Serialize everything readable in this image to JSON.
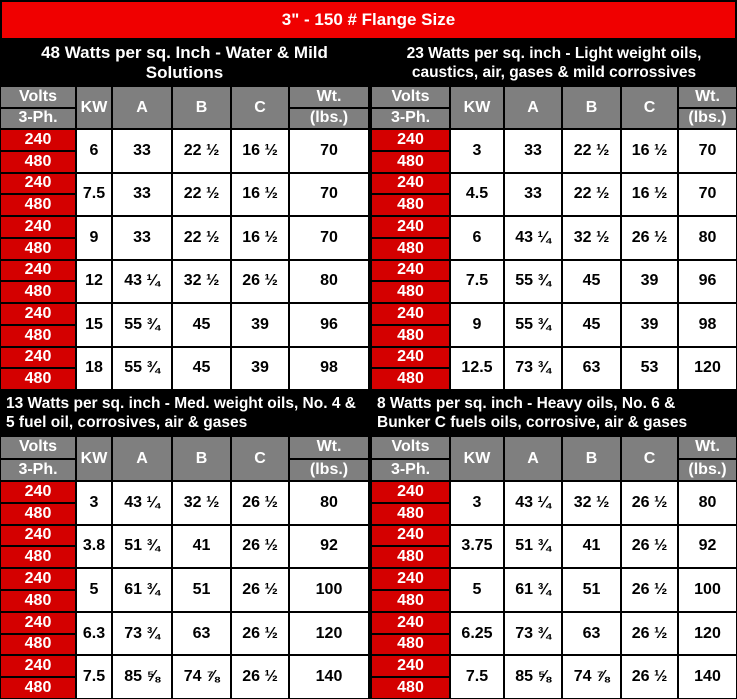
{
  "title": "3\" - 150 # Flange Size",
  "headers": {
    "volts_top": "Volts",
    "volts_bottom": "3-Ph.",
    "kw": "KW",
    "a": "A",
    "b": "B",
    "c": "C",
    "wt_top": "Wt.",
    "wt_bottom": "(lbs.)"
  },
  "sections": [
    {
      "title": "48 Watts per sq. Inch - Water & Mild Solutions",
      "rows": [
        {
          "v1": "240",
          "v2": "480",
          "kw": "6",
          "a": "33",
          "b": "22 ½",
          "c": "16 ½",
          "wt": "70"
        },
        {
          "v1": "240",
          "v2": "480",
          "kw": "7.5",
          "a": "33",
          "b": "22 ½",
          "c": "16 ½",
          "wt": "70"
        },
        {
          "v1": "240",
          "v2": "480",
          "kw": "9",
          "a": "33",
          "b": "22 ½",
          "c": "16 ½",
          "wt": "70"
        },
        {
          "v1": "240",
          "v2": "480",
          "kw": "12",
          "a": "43 ¼",
          "b": "32 ½",
          "c": "26 ½",
          "wt": "80"
        },
        {
          "v1": "240",
          "v2": "480",
          "kw": "15",
          "a": "55 ¾",
          "b": "45",
          "c": "39",
          "wt": "96"
        },
        {
          "v1": "240",
          "v2": "480",
          "kw": "18",
          "a": "55 ¾",
          "b": "45",
          "c": "39",
          "wt": "98"
        }
      ]
    },
    {
      "title": "23 Watts per sq. inch - Light weight oils, caustics, air, gases & mild corrossives",
      "rows": [
        {
          "v1": "240",
          "v2": "480",
          "kw": "3",
          "a": "33",
          "b": "22 ½",
          "c": "16 ½",
          "wt": "70"
        },
        {
          "v1": "240",
          "v2": "480",
          "kw": "4.5",
          "a": "33",
          "b": "22 ½",
          "c": "16 ½",
          "wt": "70"
        },
        {
          "v1": "240",
          "v2": "480",
          "kw": "6",
          "a": "43 ¼",
          "b": "32 ½",
          "c": "26 ½",
          "wt": "80"
        },
        {
          "v1": "240",
          "v2": "480",
          "kw": "7.5",
          "a": "55 ¾",
          "b": "45",
          "c": "39",
          "wt": "96"
        },
        {
          "v1": "240",
          "v2": "480",
          "kw": "9",
          "a": "55 ¾",
          "b": "45",
          "c": "39",
          "wt": "98"
        },
        {
          "v1": "240",
          "v2": "480",
          "kw": "12.5",
          "a": "73 ¾",
          "b": "63",
          "c": "53",
          "wt": "120"
        }
      ]
    },
    {
      "title": "13 Watts per sq. inch - Med. weight oils, No. 4 & 5 fuel oil, corrosives, air & gases",
      "rows": [
        {
          "v1": "240",
          "v2": "480",
          "kw": "3",
          "a": "43 ¼",
          "b": "32 ½",
          "c": "26 ½",
          "wt": "80"
        },
        {
          "v1": "240",
          "v2": "480",
          "kw": "3.8",
          "a": "51 ¾",
          "b": "41",
          "c": "26 ½",
          "wt": "92"
        },
        {
          "v1": "240",
          "v2": "480",
          "kw": "5",
          "a": "61 ¾",
          "b": "51",
          "c": "26 ½",
          "wt": "100"
        },
        {
          "v1": "240",
          "v2": "480",
          "kw": "6.3",
          "a": "73 ¾",
          "b": "63",
          "c": "26 ½",
          "wt": "120"
        },
        {
          "v1": "240",
          "v2": "480",
          "kw": "7.5",
          "a": "85 ⅝",
          "b": "74 ⅞",
          "c": "26 ½",
          "wt": "140"
        }
      ]
    },
    {
      "title": "8 Watts per sq. inch - Heavy oils, No. 6 & Bunker C fuels oils, corrosive, air & gases",
      "rows": [
        {
          "v1": "240",
          "v2": "480",
          "kw": "3",
          "a": "43 ¼",
          "b": "32 ½",
          "c": "26 ½",
          "wt": "80"
        },
        {
          "v1": "240",
          "v2": "480",
          "kw": "3.75",
          "a": "51 ¾",
          "b": "41",
          "c": "26 ½",
          "wt": "92"
        },
        {
          "v1": "240",
          "v2": "480",
          "kw": "5",
          "a": "61 ¾",
          "b": "51",
          "c": "26 ½",
          "wt": "100"
        },
        {
          "v1": "240",
          "v2": "480",
          "kw": "6.25",
          "a": "73 ¾",
          "b": "63",
          "c": "26 ½",
          "wt": "120"
        },
        {
          "v1": "240",
          "v2": "480",
          "kw": "7.5",
          "a": "85 ⅝",
          "b": "74 ⅞",
          "c": "26 ½",
          "wt": "140"
        }
      ]
    }
  ]
}
